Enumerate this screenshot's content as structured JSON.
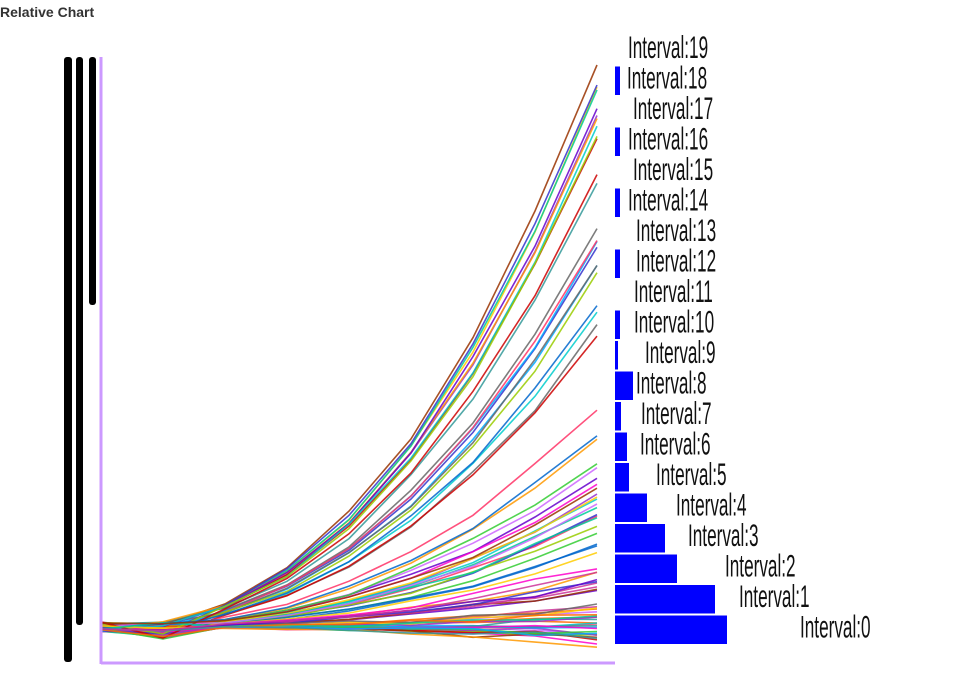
{
  "page": {
    "title": "Relative Chart"
  },
  "chart_data": [
    {
      "type": "line",
      "title": "",
      "n_series": 80,
      "n_points": 9,
      "note_seed": 7,
      "axis_color": "#cc99ff",
      "y_axis_ticks": "dense black tick marks (unreadable)",
      "series_values_description": "all series start near the same value and diverge upward toward the right; a few series rise to the top of the plot"
    },
    {
      "type": "bar",
      "orientation": "horizontal",
      "bar_color": "#0000ff",
      "categories": [
        "Interval:19",
        "Interval:18",
        "Interval:17",
        "Interval:16",
        "Interval:15",
        "Interval:14",
        "Interval:13",
        "Interval:12",
        "Interval:11",
        "Interval:10",
        "Interval:9",
        "Interval:8",
        "Interval:7",
        "Interval:6",
        "Interval:5",
        "Interval:4",
        "Interval:3",
        "Interval:2",
        "Interval:1",
        "Interval:0"
      ],
      "values": [
        0,
        5,
        0,
        5,
        0,
        5,
        0,
        5,
        0,
        5,
        3,
        18,
        6,
        12,
        14,
        32,
        50,
        62,
        100,
        112
      ]
    }
  ]
}
